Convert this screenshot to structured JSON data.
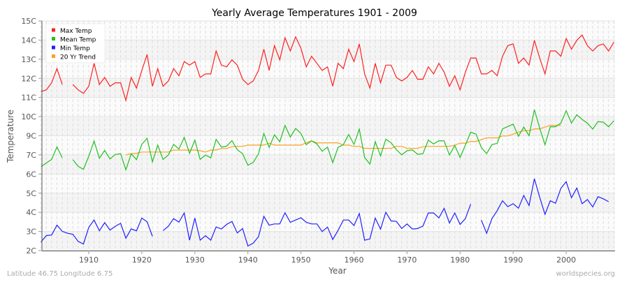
{
  "chart_data": {
    "type": "line",
    "title": "Yearly Average Temperatures 1901 - 2009",
    "xlabel": "Year",
    "ylabel": "Temperature",
    "xlim": [
      1901,
      2009
    ],
    "ylim": [
      2,
      15
    ],
    "x_ticks": [
      "1910",
      "1920",
      "1930",
      "1940",
      "1950",
      "1960",
      "1970",
      "1980",
      "1990",
      "2000"
    ],
    "y_ticks": [
      "15C",
      "14C",
      "13C",
      "12C",
      "11C",
      "10C",
      "9C",
      "7C",
      "6C",
      "5C",
      "4C",
      "3C",
      "2C"
    ],
    "grid": true,
    "legend_position": "top-left",
    "footer_left": "Latitude 46.75 Longitude 6.75",
    "footer_right": "worldspecies.org",
    "years": [
      1901,
      1902,
      1903,
      1904,
      1905,
      1906,
      1907,
      1908,
      1909,
      1910,
      1911,
      1912,
      1913,
      1914,
      1915,
      1916,
      1917,
      1918,
      1919,
      1920,
      1921,
      1922,
      1923,
      1924,
      1925,
      1926,
      1927,
      1928,
      1929,
      1930,
      1931,
      1932,
      1933,
      1934,
      1935,
      1936,
      1937,
      1938,
      1939,
      1940,
      1941,
      1942,
      1943,
      1944,
      1945,
      1946,
      1947,
      1948,
      1949,
      1950,
      1951,
      1952,
      1953,
      1954,
      1955,
      1956,
      1957,
      1958,
      1959,
      1960,
      1961,
      1962,
      1963,
      1964,
      1965,
      1966,
      1967,
      1968,
      1969,
      1970,
      1971,
      1972,
      1973,
      1974,
      1975,
      1976,
      1977,
      1978,
      1979,
      1980,
      1981,
      1982,
      1983,
      1984,
      1985,
      1986,
      1987,
      1988,
      1989,
      1990,
      1991,
      1992,
      1993,
      1994,
      1995,
      1996,
      1997,
      1998,
      1999,
      2000,
      2001,
      2002,
      2003,
      2004,
      2005,
      2006,
      2007,
      2008,
      2009
    ],
    "series": [
      {
        "name": "Max Temp",
        "color": "#ff2020",
        "values": [
          11.0,
          11.1,
          11.5,
          12.3,
          11.4,
          null,
          11.4,
          11.1,
          10.9,
          11.3,
          12.6,
          11.4,
          11.8,
          11.3,
          11.5,
          11.5,
          10.5,
          11.8,
          11.2,
          12.2,
          13.1,
          11.3,
          12.3,
          11.3,
          11.6,
          12.3,
          11.9,
          12.7,
          12.5,
          12.7,
          11.8,
          12.0,
          12.0,
          13.3,
          12.5,
          12.4,
          12.8,
          12.5,
          11.7,
          11.4,
          11.6,
          12.2,
          13.4,
          12.2,
          13.6,
          12.8,
          14.05,
          13.3,
          14.1,
          13.45,
          12.4,
          13.0,
          12.6,
          12.2,
          12.4,
          11.3,
          12.6,
          12.3,
          13.4,
          12.7,
          13.7,
          12.0,
          11.2,
          12.6,
          11.5,
          12.5,
          12.5,
          11.8,
          11.6,
          11.8,
          12.2,
          11.7,
          11.7,
          12.4,
          12.0,
          12.6,
          12.1,
          11.3,
          11.9,
          11.1,
          12.1,
          12.9,
          12.9,
          12.0,
          12.0,
          12.2,
          11.9,
          13.0,
          13.6,
          13.7,
          12.6,
          12.9,
          12.5,
          13.9,
          12.9,
          12.0,
          13.3,
          13.3,
          13.0,
          14.0,
          13.4,
          13.9,
          14.2,
          13.6,
          13.3,
          13.6,
          13.7,
          13.3,
          13.8
        ]
      },
      {
        "name": "Mean Temp",
        "color": "#20c020",
        "values": [
          6.75,
          6.96,
          7.16,
          7.87,
          7.25,
          null,
          7.15,
          6.77,
          6.6,
          7.34,
          8.2,
          7.23,
          7.67,
          7.19,
          7.44,
          7.48,
          6.57,
          7.48,
          7.15,
          8.01,
          8.36,
          7.02,
          7.97,
          7.16,
          7.41,
          8.01,
          7.75,
          8.41,
          7.51,
          8.25,
          7.16,
          7.41,
          7.25,
          8.3,
          7.86,
          7.91,
          8.22,
          7.71,
          7.49,
          6.83,
          6.99,
          7.48,
          8.63,
          7.84,
          8.55,
          8.16,
          9.08,
          8.43,
          8.92,
          8.63,
          8.0,
          8.21,
          8.04,
          7.62,
          7.86,
          6.98,
          7.84,
          8.0,
          8.57,
          8.01,
          8.88,
          7.27,
          6.9,
          8.17,
          7.36,
          8.3,
          8.11,
          7.71,
          7.42,
          7.65,
          7.7,
          7.45,
          7.49,
          8.25,
          8.04,
          8.22,
          8.21,
          7.41,
          7.95,
          7.27,
          7.97,
          8.7,
          8.59,
          7.84,
          7.49,
          8.0,
          8.07,
          8.89,
          9.02,
          9.16,
          8.47,
          8.99,
          8.5,
          9.98,
          8.93,
          7.99,
          9.01,
          9.01,
          9.22,
          9.92,
          9.22,
          9.69,
          9.43,
          9.21,
          8.88,
          9.3,
          9.27,
          9.01,
          9.35
        ]
      },
      {
        "name": "Min Temp",
        "color": "#2020ff",
        "values": [
          2.49,
          2.85,
          2.88,
          3.44,
          3.09,
          2.98,
          2.92,
          2.52,
          2.37,
          3.31,
          3.73,
          3.12,
          3.58,
          3.16,
          3.38,
          3.54,
          2.7,
          3.23,
          3.12,
          3.84,
          3.63,
          2.81,
          null,
          3.13,
          3.38,
          3.81,
          3.61,
          4.13,
          2.59,
          3.84,
          2.59,
          2.84,
          2.59,
          3.34,
          3.22,
          3.48,
          3.65,
          3.0,
          3.25,
          2.26,
          2.42,
          2.79,
          3.94,
          3.44,
          3.51,
          3.51,
          4.14,
          3.6,
          3.73,
          3.86,
          3.6,
          3.51,
          3.51,
          3.08,
          3.33,
          2.63,
          3.14,
          3.73,
          3.73,
          3.42,
          4.1,
          2.59,
          2.66,
          3.84,
          3.21,
          4.17,
          3.68,
          3.65,
          3.25,
          3.51,
          3.22,
          3.25,
          3.39,
          4.13,
          4.13,
          3.85,
          4.39,
          3.56,
          4.13,
          3.48,
          3.81,
          4.63,
          null,
          3.73,
          2.98,
          3.81,
          4.26,
          4.82,
          4.49,
          4.65,
          4.4,
          5.12,
          4.55,
          6.07,
          5.02,
          4.05,
          4.82,
          4.68,
          5.52,
          5.9,
          4.99,
          5.54,
          4.65,
          4.89,
          4.47,
          5.05,
          4.93,
          4.77,
          null
        ]
      },
      {
        "name": "20 Yr Trend",
        "color": "#ffa020",
        "values": [
          null,
          null,
          null,
          null,
          null,
          null,
          null,
          null,
          null,
          null,
          null,
          null,
          null,
          null,
          null,
          null,
          7.41,
          7.49,
          7.51,
          7.58,
          7.58,
          7.58,
          7.58,
          7.58,
          7.58,
          7.69,
          7.69,
          7.69,
          7.69,
          7.69,
          7.65,
          7.58,
          7.69,
          7.69,
          7.78,
          7.78,
          7.88,
          7.9,
          7.9,
          7.97,
          7.97,
          7.97,
          7.97,
          8.08,
          7.97,
          7.97,
          7.97,
          7.97,
          7.97,
          7.97,
          8.1,
          8.21,
          8.1,
          8.1,
          8.1,
          8.1,
          8.1,
          7.97,
          7.97,
          7.9,
          7.9,
          7.79,
          7.79,
          7.79,
          7.79,
          7.79,
          7.79,
          7.9,
          7.9,
          7.79,
          7.79,
          7.79,
          7.88,
          7.9,
          7.9,
          7.9,
          7.9,
          7.9,
          7.97,
          8.08,
          8.08,
          8.18,
          8.18,
          8.28,
          8.38,
          8.38,
          8.38,
          8.49,
          8.49,
          8.59,
          8.7,
          8.79,
          8.79,
          8.89,
          8.89,
          8.99,
          9.09,
          9.09,
          9.09,
          null,
          null,
          null,
          null,
          null,
          null,
          null,
          null,
          null,
          null
        ]
      }
    ]
  }
}
